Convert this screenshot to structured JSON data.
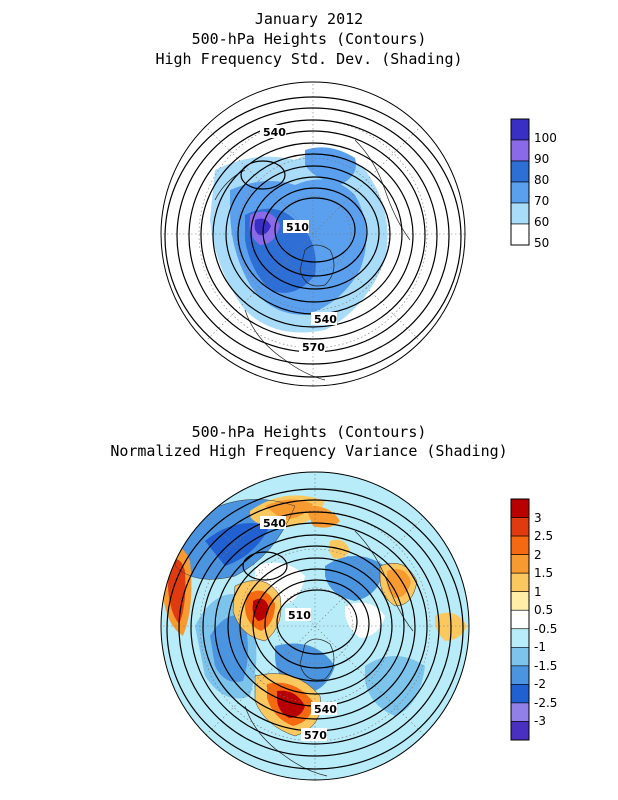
{
  "top_panel": {
    "title_lines": [
      "January 2012",
      "500-hPa Heights (Contours)",
      "High Frequency Std. Dev. (Shading)"
    ],
    "contour_labels": [
      "540",
      "510",
      "540",
      "570"
    ],
    "colorbar": {
      "labels": [
        "100",
        "90",
        "80",
        "70",
        "60",
        "50"
      ],
      "colors": [
        "#3a2fc4",
        "#8a6ae8",
        "#2e6fd6",
        "#5aa0ee",
        "#a8dcf8",
        "#ffffff"
      ]
    }
  },
  "bottom_panel": {
    "title_lines": [
      "500-hPa Heights (Contours)",
      "Normalized High Frequency Variance (Shading)"
    ],
    "contour_labels": [
      "540",
      "510",
      "540",
      "570"
    ],
    "colorbar": {
      "labels": [
        "3",
        "2.5",
        "2",
        "1.5",
        "1",
        "0.5",
        "-0.5",
        "-1",
        "-1.5",
        "-2",
        "-2.5",
        "-3"
      ],
      "colors": [
        "#b80000",
        "#e03a10",
        "#f56a10",
        "#f79a30",
        "#fbc860",
        "#ffeea8",
        "#ffffff",
        "#b8ecf8",
        "#7cc4ec",
        "#4a94e0",
        "#2060d0",
        "#9080e8",
        "#4a30c0"
      ]
    }
  }
}
